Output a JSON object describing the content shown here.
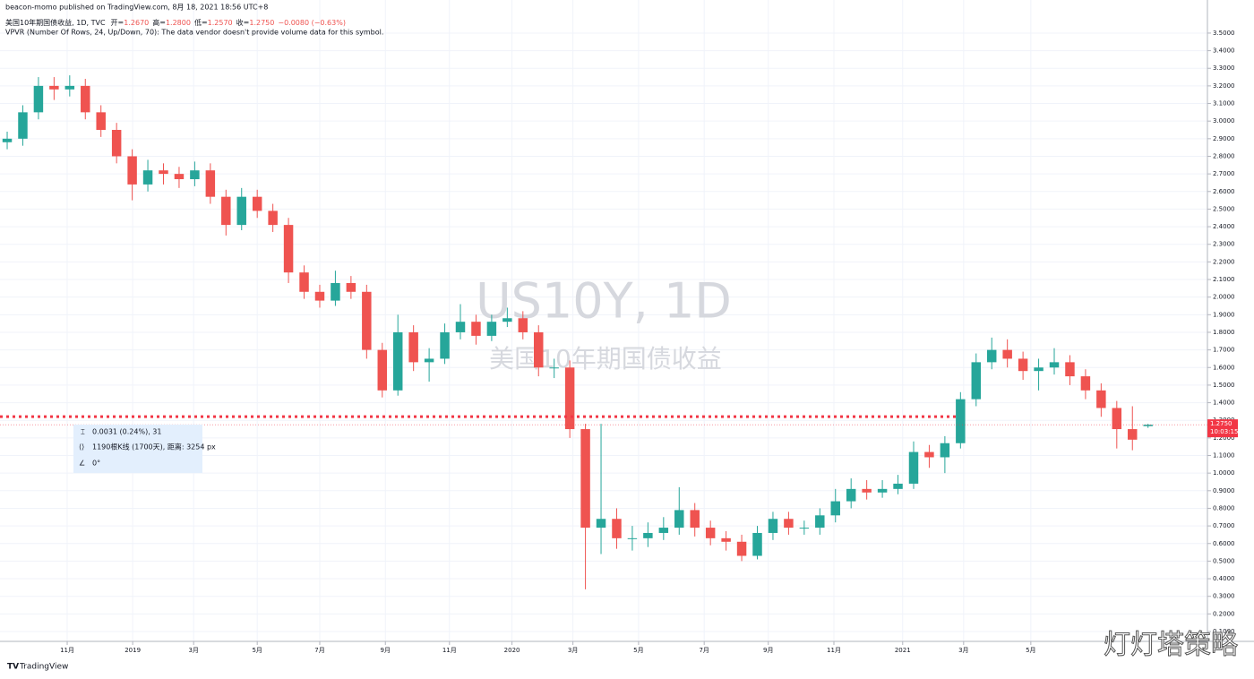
{
  "header": {
    "published": "beacon-momo published on TradingView.com, 8月 18, 2021 18:56 UTC+8",
    "symbol": "美国10年期国债收益, 1D, TVC",
    "open_label": "开",
    "open": "1.2670",
    "high_label": "高",
    "high": "1.2800",
    "low_label": "低",
    "low": "1.2570",
    "close_label": "收",
    "close": "1.2750",
    "change": "−0.0080 (−0.63%)",
    "indicator": "VPVR (Number Of Rows, 24, Up/Down, 70): The data vendor doesn't provide volume data for this symbol."
  },
  "watermark": {
    "line1": "US10Y, 1D",
    "line2": "美国10年期国债收益"
  },
  "measure": {
    "price": "0.0031 (0.24%), 31",
    "bars": "1190根K线 (1700天), 距离: 3254 px",
    "angle": "0°"
  },
  "footer": {
    "brand": "TradingView",
    "corner_watermark": "灯灯塔策略"
  },
  "chart_data": {
    "type": "candlestick",
    "up_color": "#26a69a",
    "down_color": "#ef5350",
    "grid": true,
    "open": [
      2.88,
      2.9,
      3.05,
      3.2,
      3.18,
      3.2,
      3.05,
      2.95,
      2.8,
      2.64,
      2.72,
      2.7,
      2.67,
      2.72,
      2.57,
      2.41,
      2.57,
      2.49,
      2.41,
      2.14,
      2.03,
      1.98,
      2.08,
      2.03,
      1.7,
      1.47,
      1.8,
      1.63,
      1.65,
      1.8,
      1.86,
      1.78,
      1.86,
      1.88,
      1.8,
      1.6,
      1.6,
      1.25,
      0.69,
      0.74,
      0.63,
      0.63,
      0.66,
      0.69,
      0.79,
      0.69,
      0.63,
      0.61,
      0.53,
      0.66,
      0.74,
      0.69,
      0.69,
      0.76,
      0.84,
      0.91,
      0.89,
      0.91,
      0.94,
      1.12,
      1.09,
      1.17,
      1.42,
      1.63,
      1.7,
      1.65,
      1.58,
      1.6,
      1.63,
      1.55,
      1.47,
      1.37,
      1.25,
      1.267
    ],
    "high": [
      2.94,
      3.09,
      3.25,
      3.25,
      3.26,
      3.24,
      3.09,
      2.99,
      2.84,
      2.78,
      2.76,
      2.74,
      2.77,
      2.76,
      2.61,
      2.62,
      2.61,
      2.53,
      2.45,
      2.18,
      2.07,
      2.15,
      2.12,
      2.07,
      1.74,
      1.9,
      1.84,
      1.71,
      1.85,
      1.96,
      1.9,
      1.9,
      1.94,
      1.92,
      1.84,
      1.65,
      1.64,
      1.28,
      1.28,
      0.8,
      0.7,
      0.72,
      0.75,
      0.92,
      0.83,
      0.73,
      0.67,
      0.65,
      0.7,
      0.78,
      0.78,
      0.73,
      0.8,
      0.91,
      0.97,
      0.96,
      0.96,
      0.99,
      1.18,
      1.16,
      1.21,
      1.46,
      1.68,
      1.77,
      1.76,
      1.69,
      1.65,
      1.71,
      1.67,
      1.59,
      1.51,
      1.41,
      1.38,
      1.28
    ],
    "low": [
      2.84,
      2.86,
      3.01,
      3.12,
      3.14,
      3.01,
      2.91,
      2.76,
      2.55,
      2.6,
      2.64,
      2.62,
      2.63,
      2.53,
      2.35,
      2.38,
      2.45,
      2.37,
      2.08,
      1.99,
      1.94,
      1.95,
      1.99,
      1.65,
      1.43,
      1.44,
      1.58,
      1.52,
      1.62,
      1.76,
      1.73,
      1.75,
      1.83,
      1.76,
      1.55,
      1.54,
      1.2,
      0.34,
      0.54,
      0.57,
      0.56,
      0.58,
      0.62,
      0.65,
      0.64,
      0.59,
      0.56,
      0.5,
      0.51,
      0.62,
      0.65,
      0.65,
      0.65,
      0.72,
      0.8,
      0.85,
      0.86,
      0.88,
      0.91,
      1.03,
      1.0,
      1.14,
      1.38,
      1.59,
      1.6,
      1.53,
      1.47,
      1.56,
      1.5,
      1.42,
      1.32,
      1.14,
      1.13,
      1.257
    ],
    "close": [
      2.9,
      3.05,
      3.2,
      3.18,
      3.2,
      3.05,
      2.95,
      2.8,
      2.64,
      2.72,
      2.7,
      2.67,
      2.72,
      2.57,
      2.41,
      2.57,
      2.49,
      2.41,
      2.14,
      2.03,
      1.98,
      2.08,
      2.03,
      1.7,
      1.47,
      1.8,
      1.63,
      1.65,
      1.8,
      1.86,
      1.78,
      1.86,
      1.88,
      1.8,
      1.6,
      1.6,
      1.25,
      0.69,
      0.74,
      0.63,
      0.63,
      0.66,
      0.69,
      0.79,
      0.69,
      0.63,
      0.61,
      0.53,
      0.66,
      0.74,
      0.69,
      0.69,
      0.76,
      0.84,
      0.91,
      0.89,
      0.91,
      0.94,
      1.12,
      1.09,
      1.17,
      1.42,
      1.63,
      1.7,
      1.65,
      1.58,
      1.6,
      1.63,
      1.55,
      1.47,
      1.37,
      1.25,
      1.19,
      1.275
    ],
    "xlim": [
      -0.46,
      76.8
    ],
    "xticks": [
      {
        "value": 3.84,
        "label": "11月"
      },
      {
        "value": 8.03,
        "label": "2019"
      },
      {
        "value": 11.93,
        "label": "3月"
      },
      {
        "value": 16.0,
        "label": "5月"
      },
      {
        "value": 20.0,
        "label": "7月"
      },
      {
        "value": 24.2,
        "label": "9月"
      },
      {
        "value": 28.3,
        "label": "11月"
      },
      {
        "value": 32.3,
        "label": "2020"
      },
      {
        "value": 36.2,
        "label": "3月"
      },
      {
        "value": 40.4,
        "label": "5月"
      },
      {
        "value": 44.6,
        "label": "7月"
      },
      {
        "value": 48.7,
        "label": "9月"
      },
      {
        "value": 52.9,
        "label": "11月"
      },
      {
        "value": 57.3,
        "label": "2021"
      },
      {
        "value": 61.2,
        "label": "3月"
      },
      {
        "value": 65.5,
        "label": "5月"
      }
    ],
    "ylim": [
      0.044,
      3.688
    ],
    "yticks": [
      {
        "value": 0.1,
        "label": "0.1000"
      },
      {
        "value": 0.2,
        "label": "0.2000"
      },
      {
        "value": 0.3,
        "label": "0.3000"
      },
      {
        "value": 0.4,
        "label": "0.4000"
      },
      {
        "value": 0.5,
        "label": "0.5000"
      },
      {
        "value": 0.6,
        "label": "0.6000"
      },
      {
        "value": 0.7,
        "label": "0.7000"
      },
      {
        "value": 0.8,
        "label": "0.8000"
      },
      {
        "value": 0.9,
        "label": "0.9000"
      },
      {
        "value": 1.0,
        "label": "1.0000"
      },
      {
        "value": 1.1,
        "label": "1.1000"
      },
      {
        "value": 1.2,
        "label": "1.2000"
      },
      {
        "value": 1.3,
        "label": "1.3000"
      },
      {
        "value": 1.4,
        "label": "1.4000"
      },
      {
        "value": 1.5,
        "label": "1.5000"
      },
      {
        "value": 1.6,
        "label": "1.6000"
      },
      {
        "value": 1.7,
        "label": "1.7000"
      },
      {
        "value": 1.8,
        "label": "1.8000"
      },
      {
        "value": 1.9,
        "label": "1.9000"
      },
      {
        "value": 2.0,
        "label": "2.0000"
      },
      {
        "value": 2.1,
        "label": "2.1000"
      },
      {
        "value": 2.2,
        "label": "2.2000"
      },
      {
        "value": 2.3,
        "label": "2.3000"
      },
      {
        "value": 2.4,
        "label": "2.4000"
      },
      {
        "value": 2.5,
        "label": "2.5000"
      },
      {
        "value": 2.6,
        "label": "2.6000"
      },
      {
        "value": 2.7,
        "label": "2.7000"
      },
      {
        "value": 2.8,
        "label": "2.8000"
      },
      {
        "value": 2.9,
        "label": "2.9000"
      },
      {
        "value": 3.0,
        "label": "3.0000"
      },
      {
        "value": 3.1,
        "label": "3.1000"
      },
      {
        "value": 3.2,
        "label": "3.2000"
      },
      {
        "value": 3.3,
        "label": "3.3000"
      },
      {
        "value": 3.4,
        "label": "3.4000"
      },
      {
        "value": 3.5,
        "label": "3.5000"
      }
    ],
    "horizontal_line": {
      "value": 1.321,
      "color": "#f23645"
    },
    "current_price": {
      "value": 1.275,
      "label": "1.2750",
      "countdown": "10:03:15",
      "color": "#f23645"
    }
  }
}
